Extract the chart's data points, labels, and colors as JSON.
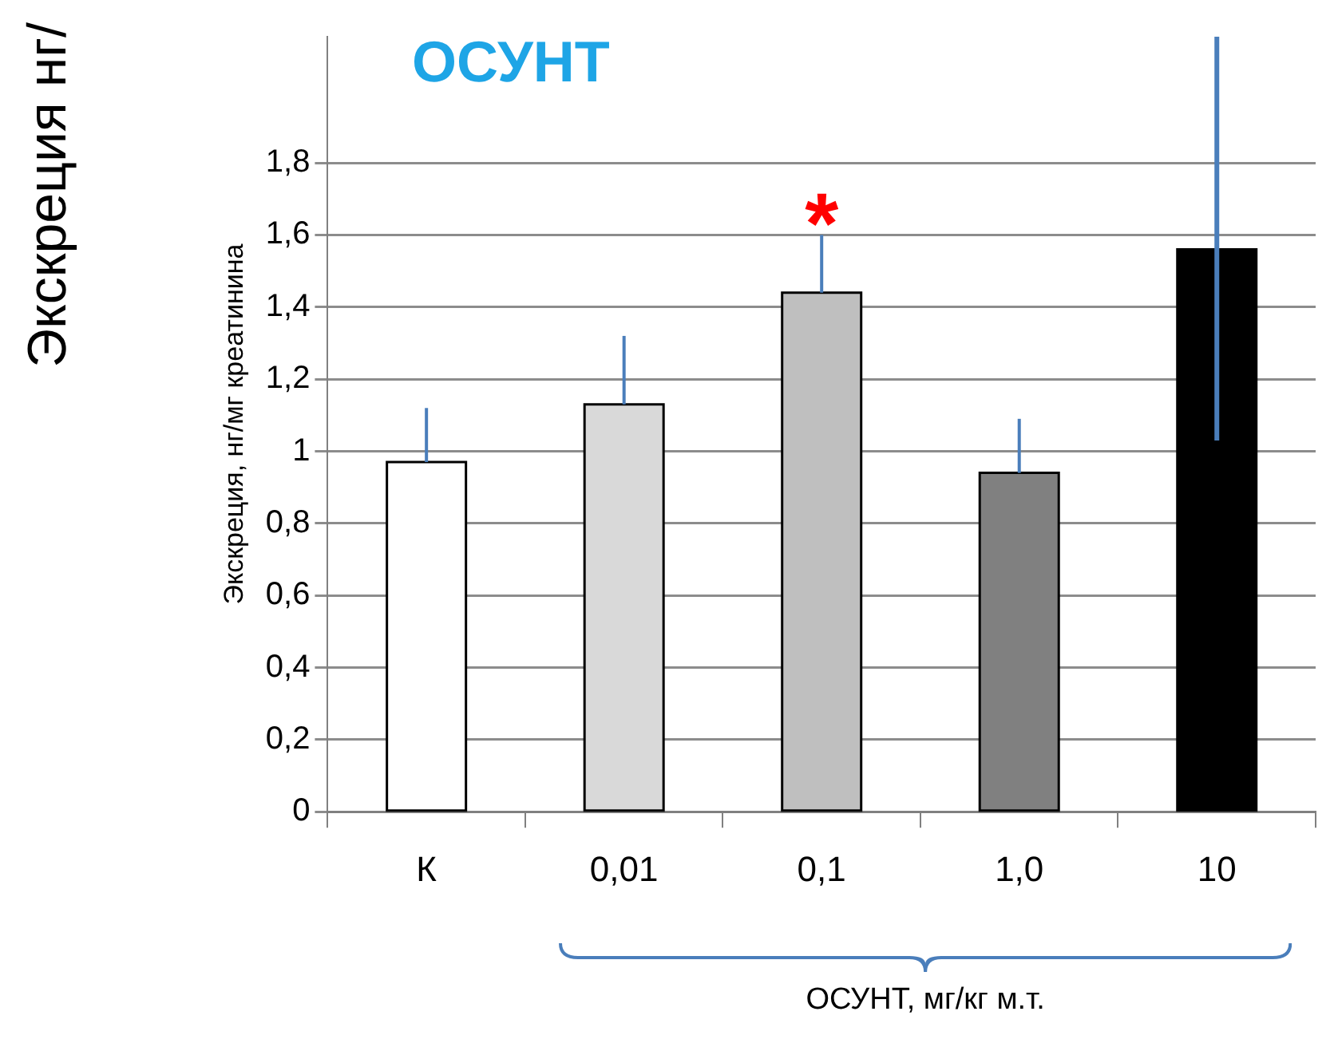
{
  "chart_data": {
    "type": "bar",
    "title": "ОСУНТ",
    "xlabel": "ОСУНТ, мг/кг м.т.",
    "ylabel": "Экскреция, нг/мг креатинина",
    "categories": [
      "К",
      "0,01",
      "0,1",
      "1,0",
      "10"
    ],
    "values": [
      0.97,
      1.13,
      1.44,
      0.94,
      1.56
    ],
    "colors": [
      "#ffffff",
      "#d9d9d9",
      "#bfbfbf",
      "#808080",
      "#000000"
    ],
    "errors": [
      [
        0.97,
        1.12
      ],
      [
        1.13,
        1.32
      ],
      [
        1.44,
        1.6
      ],
      [
        0.94,
        1.09
      ],
      [
        1.03,
        2.15
      ]
    ],
    "ylim": [
      0,
      2.15
    ],
    "yticks": [
      0,
      {
        "value": 0.2,
        "label": "0,2"
      },
      {
        "value": 0.4,
        "label": "0,4"
      },
      {
        "value": 0.6,
        "label": "0,6"
      },
      {
        "value": 0.8,
        "label": "0,8"
      },
      1,
      {
        "value": 1.2,
        "label": "1,2"
      },
      {
        "value": 1.4,
        "label": "1,4"
      },
      {
        "value": 1.6,
        "label": "1,6"
      },
      {
        "value": 1.8,
        "label": "1,8"
      }
    ],
    "grid": "y",
    "legend": false,
    "annotations": [
      "Экскреция нг/",
      {
        "text": "*",
        "x": "0,1",
        "y": 1.62
      }
    ]
  }
}
